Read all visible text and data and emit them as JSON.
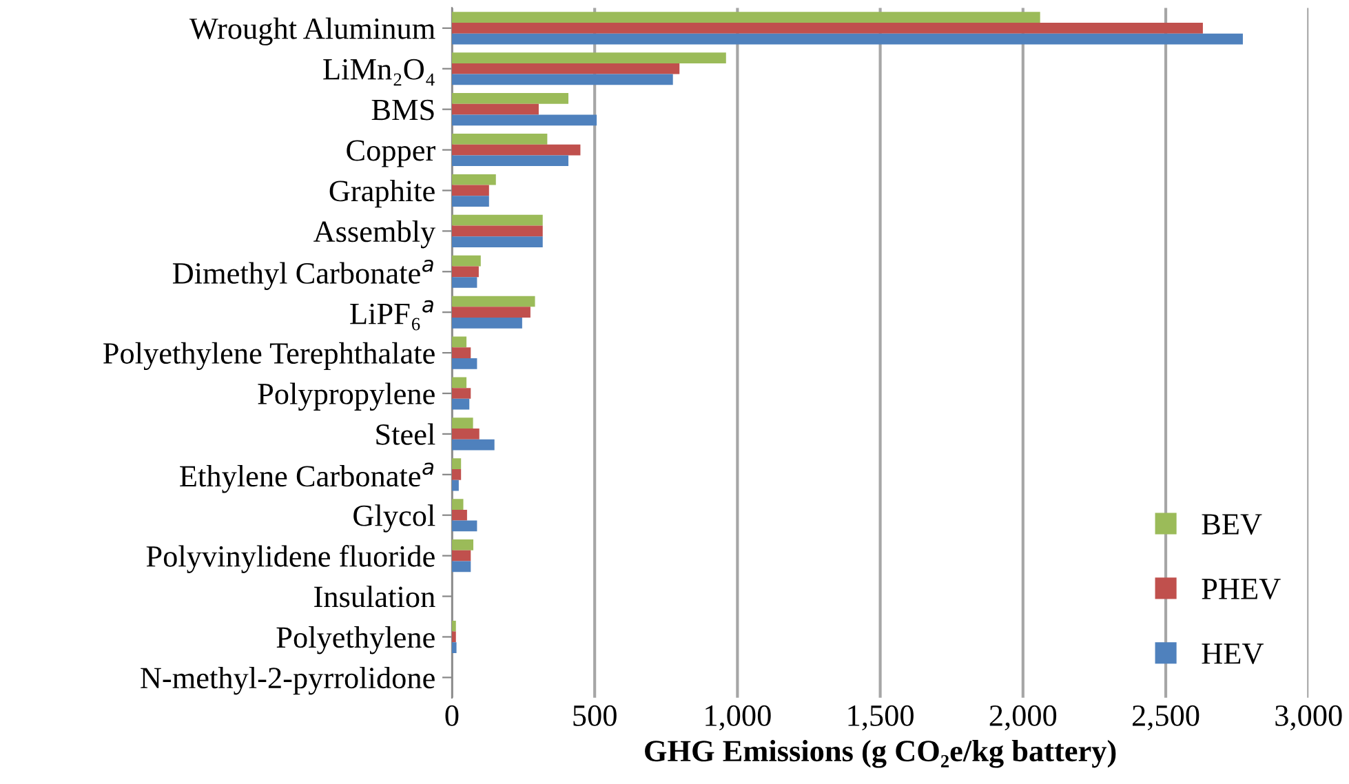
{
  "chart_data": {
    "type": "bar",
    "orientation": "horizontal",
    "categories": [
      "Wrought Aluminum",
      "LiMn₂O₄",
      "BMS",
      "Copper",
      "Graphite",
      "Assembly",
      "Dimethyl Carbonate$^{a}$",
      "LiPF₆$^{a}$",
      "Polyethylene Terephthalate",
      "Polypropylene",
      "Steel",
      "Ethylene Carbonate$^{a}$",
      "Glycol",
      "Polyvinylidene fluoride",
      "Insulation",
      "Polyethylene",
      "N-methyl-2-pyrrolidone"
    ],
    "series": [
      {
        "name": "BEV",
        "color": "#9bbb59",
        "values": [
          2060,
          960,
          408,
          334,
          154,
          318,
          101,
          291,
          51,
          51,
          74,
          32,
          40,
          75,
          0,
          14,
          0
        ]
      },
      {
        "name": "PHEV",
        "color": "#c0504d",
        "values": [
          2630,
          797,
          304,
          450,
          130,
          318,
          94,
          275,
          66,
          66,
          96,
          32,
          53,
          66,
          0,
          14,
          0
        ]
      },
      {
        "name": "HEV",
        "color": "#4f81bd",
        "values": [
          2770,
          774,
          507,
          408,
          130,
          318,
          88,
          246,
          88,
          61,
          149,
          24,
          88,
          66,
          0,
          16,
          0
        ]
      }
    ],
    "xlabel": "GHG Emissions (g CO₂e/kg battery)",
    "xlim": [
      0,
      3000
    ],
    "xticks": [
      0,
      500,
      {
        "value": 1000,
        "label": "1,000"
      },
      {
        "value": 1500,
        "label": "1,500"
      },
      {
        "value": 2000,
        "label": "2,000"
      },
      {
        "value": 2500,
        "label": "2,500"
      },
      {
        "value": 3000,
        "label": "3,000"
      }
    ],
    "grid": "x",
    "legend": "bottom right"
  }
}
